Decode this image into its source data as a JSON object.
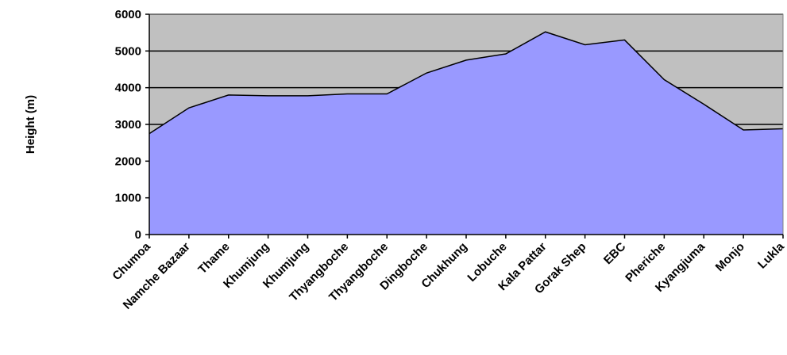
{
  "chart_data": {
    "type": "area",
    "title": "",
    "xlabel": "",
    "ylabel": "Height (m)",
    "ylim": [
      0,
      6000
    ],
    "yticks": [
      0,
      1000,
      2000,
      3000,
      4000,
      5000,
      6000
    ],
    "grid": true,
    "legend": "none",
    "categories": [
      "Chumoa",
      "Namche Bazaar",
      "Thame",
      "Khumjung",
      "Khumjung",
      "Thyangboche",
      "Thyangboche",
      "Dingboche",
      "Chukhung",
      "Lobuche",
      "Kala Pattar",
      "Gorak Shep",
      "EBC",
      "Pheriche",
      "Kyangjuma",
      "Monjo",
      "Lukla"
    ],
    "series": [
      {
        "values": [
          2750,
          3450,
          3800,
          3780,
          3780,
          3830,
          3830,
          4400,
          4750,
          4920,
          5520,
          5170,
          5300,
          4220,
          3550,
          2850,
          2880
        ]
      }
    ],
    "colors": {
      "plot_background": "#c0c0c0",
      "area_fill": "#9999ff",
      "line": "#000000",
      "grid": "#000000"
    }
  }
}
